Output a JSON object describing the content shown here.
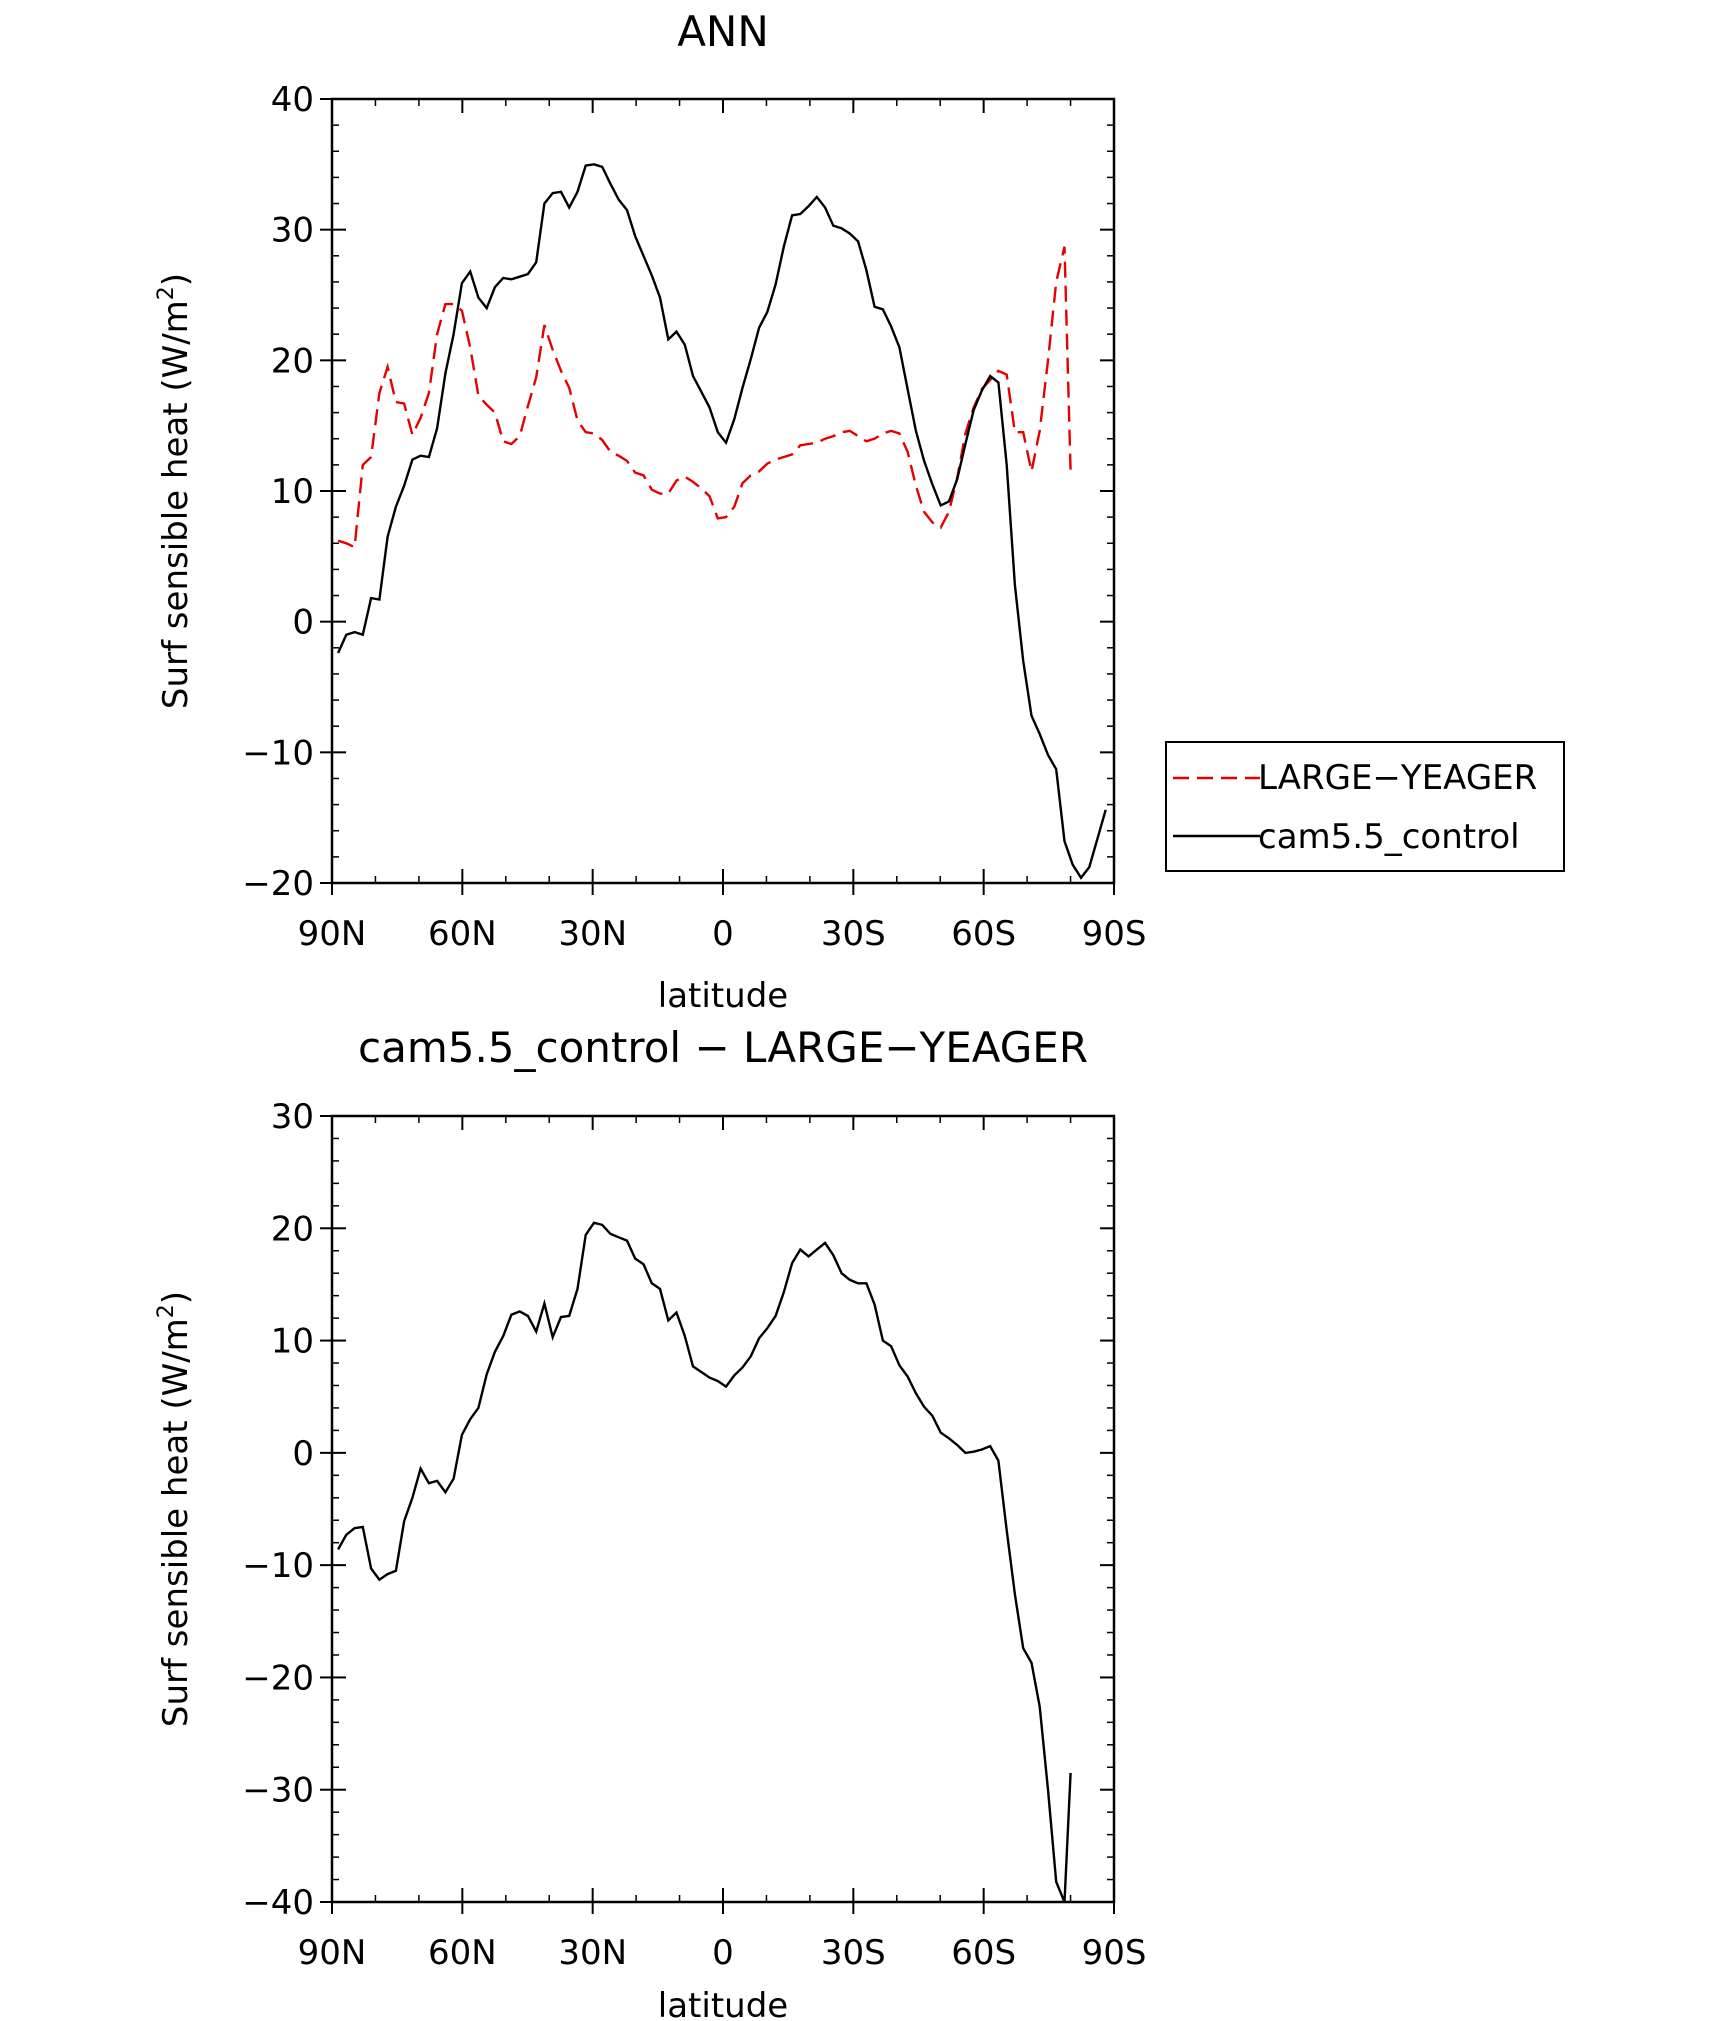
{
  "chart_data": [
    {
      "type": "line",
      "title": "ANN",
      "xlabel": "latitude",
      "ylabel": "Surf sensible heat (W/m²)",
      "ylabel_main": "Surf sensible heat (W/m",
      "ylabel_sup": "2",
      "ylabel_close": ")",
      "xlim": [
        90,
        -90
      ],
      "ylim": [
        -20,
        40
      ],
      "yticks": [
        40,
        30,
        20,
        10,
        0,
        -10,
        -20
      ],
      "ytick_labels": [
        "40",
        "30",
        "20",
        "10",
        "0",
        "−10",
        "−20"
      ],
      "xticks": [
        90,
        60,
        30,
        0,
        -30,
        -60,
        -90
      ],
      "xtick_labels": [
        "90N",
        "60N",
        "30N",
        "0",
        "30S",
        "60S",
        "90S"
      ],
      "legend": [
        "LARGE−YEAGER",
        "cam5.5_control"
      ],
      "legend_position": "right",
      "series": [
        {
          "name": "LARGE−YEAGER",
          "color": "#e60000",
          "dash": true,
          "lat": [
            88.6,
            86.7,
            84.8,
            82.9,
            81.0,
            79.1,
            77.2,
            75.3,
            73.4,
            71.5,
            69.6,
            67.7,
            65.8,
            63.9,
            62.0,
            60.1,
            58.2,
            56.3,
            54.4,
            52.5,
            50.6,
            48.7,
            46.8,
            44.9,
            43.0,
            41.1,
            39.2,
            37.3,
            35.4,
            33.5,
            31.6,
            29.7,
            27.8,
            25.9,
            24.0,
            22.1,
            20.2,
            18.3,
            16.4,
            14.5,
            12.6,
            10.7,
            8.8,
            6.9,
            5.0,
            3.1,
            1.2,
            -0.7,
            -2.6,
            -4.5,
            -6.4,
            -8.3,
            -10.2,
            -12.1,
            -14.0,
            -15.9,
            -17.8,
            -19.7,
            -21.6,
            -23.5,
            -25.4,
            -27.3,
            -29.2,
            -31.1,
            -33.0,
            -34.9,
            -36.8,
            -38.7,
            -40.6,
            -42.5,
            -44.4,
            -46.3,
            -48.2,
            -50.1,
            -52.0,
            -53.9,
            -55.8,
            -57.7,
            -59.6,
            -61.5,
            -63.4,
            -65.3,
            -67.2,
            -69.1,
            -71.0,
            -72.9,
            -74.8,
            -76.7,
            -78.6,
            -80.0
          ],
          "values": [
            6.2,
            6.0,
            5.7,
            12.0,
            12.6,
            17.5,
            19.5,
            16.8,
            16.7,
            14.3,
            15.6,
            17.5,
            22.0,
            24.3,
            24.3,
            23.8,
            21.0,
            17.3,
            16.6,
            16.0,
            13.8,
            13.6,
            14.2,
            16.5,
            18.7,
            22.7,
            20.8,
            19.2,
            17.9,
            15.4,
            14.5,
            14.4,
            13.9,
            13.0,
            12.7,
            12.3,
            11.4,
            11.2,
            10.1,
            9.8,
            9.8,
            10.8,
            11.1,
            10.7,
            10.2,
            9.6,
            7.9,
            8.0,
            8.8,
            10.6,
            11.2,
            11.5,
            12.1,
            12.4,
            12.6,
            12.8,
            13.5,
            13.6,
            13.7,
            14.0,
            14.2,
            14.5,
            14.6,
            14.2,
            13.8,
            14.0,
            14.4,
            14.6,
            14.4,
            13.0,
            10.4,
            8.4,
            7.6,
            7.2,
            8.4,
            11.0,
            14.4,
            16.4,
            17.8,
            18.5,
            19.2,
            18.9,
            14.5,
            14.5,
            11.5,
            14.6,
            20.0,
            26.0,
            28.7,
            11.5
          ]
        },
        {
          "name": "cam5.5_control",
          "color": "#000000",
          "dash": false,
          "lat": [
            88.6,
            86.7,
            84.8,
            82.9,
            81.0,
            79.1,
            77.2,
            75.3,
            73.4,
            71.5,
            69.6,
            67.7,
            65.8,
            63.9,
            62.0,
            60.1,
            58.2,
            56.3,
            54.4,
            52.5,
            50.6,
            48.7,
            46.8,
            44.9,
            43.0,
            41.1,
            39.2,
            37.3,
            35.4,
            33.5,
            31.6,
            29.7,
            27.8,
            25.9,
            24.0,
            22.1,
            20.2,
            18.3,
            16.4,
            14.5,
            12.6,
            10.7,
            8.8,
            6.9,
            5.0,
            3.1,
            1.2,
            -0.7,
            -2.6,
            -4.5,
            -6.4,
            -8.3,
            -10.2,
            -12.1,
            -14.0,
            -15.9,
            -17.8,
            -19.7,
            -21.6,
            -23.5,
            -25.4,
            -27.3,
            -29.2,
            -31.1,
            -33.0,
            -34.9,
            -36.8,
            -38.7,
            -40.6,
            -42.5,
            -44.4,
            -46.3,
            -48.2,
            -50.1,
            -52.0,
            -53.9,
            -55.8,
            -57.7,
            -59.6,
            -61.5,
            -63.4,
            -65.3,
            -67.2,
            -69.1,
            -71.0,
            -72.9,
            -74.8,
            -76.7,
            -78.6,
            -80.5,
            -82.4,
            -84.3,
            -86.2,
            -88.1
          ],
          "values": [
            -2.4,
            -1.0,
            -0.8,
            -1.0,
            1.8,
            1.7,
            6.5,
            8.8,
            10.4,
            12.4,
            12.7,
            12.6,
            14.8,
            19.0,
            22.0,
            25.9,
            26.8,
            24.8,
            24.0,
            25.6,
            26.3,
            26.2,
            26.4,
            26.6,
            27.5,
            32.0,
            32.8,
            32.9,
            31.7,
            32.9,
            34.9,
            35.0,
            34.8,
            33.5,
            32.3,
            31.5,
            29.5,
            28.0,
            26.5,
            24.8,
            21.6,
            22.2,
            21.2,
            18.8,
            17.6,
            16.4,
            14.5,
            13.7,
            15.5,
            17.9,
            20.1,
            22.5,
            23.7,
            25.8,
            28.7,
            31.1,
            31.2,
            31.8,
            32.5,
            31.7,
            30.3,
            30.1,
            29.7,
            29.1,
            26.9,
            24.1,
            23.9,
            22.6,
            21.0,
            17.8,
            14.6,
            12.3,
            10.5,
            8.9,
            9.2,
            10.9,
            13.6,
            16.2,
            17.7,
            18.8,
            18.3,
            12.0,
            2.8,
            -3.0,
            -7.2,
            -8.6,
            -10.2,
            -11.3,
            -16.8,
            -18.6,
            -19.6,
            -18.8,
            -16.6,
            -14.4
          ]
        }
      ]
    },
    {
      "type": "line",
      "title": "cam5.5_control − LARGE−YEAGER",
      "xlabel": "latitude",
      "ylabel": "Surf sensible heat (W/m²)",
      "ylabel_main": "Surf sensible heat (W/m",
      "ylabel_sup": "2",
      "ylabel_close": ")",
      "xlim": [
        90,
        -90
      ],
      "ylim": [
        -40,
        30
      ],
      "yticks": [
        30,
        20,
        10,
        0,
        -10,
        -20,
        -30,
        -40
      ],
      "ytick_labels": [
        "30",
        "20",
        "10",
        "0",
        "−10",
        "−20",
        "−30",
        "−40"
      ],
      "xticks": [
        90,
        60,
        30,
        0,
        -30,
        -60,
        -90
      ],
      "xtick_labels": [
        "90N",
        "60N",
        "30N",
        "0",
        "30S",
        "60S",
        "90S"
      ],
      "series": [
        {
          "name": "cam5.5_control − LARGE−YEAGER",
          "color": "#000000",
          "dash": false,
          "lat": [
            88.6,
            86.7,
            84.8,
            82.9,
            81.0,
            79.1,
            77.2,
            75.3,
            73.4,
            71.5,
            69.6,
            67.7,
            65.8,
            63.9,
            62.0,
            60.1,
            58.2,
            56.3,
            54.4,
            52.5,
            50.6,
            48.7,
            46.8,
            44.9,
            43.0,
            41.1,
            39.2,
            37.3,
            35.4,
            33.5,
            31.6,
            29.7,
            27.8,
            25.9,
            24.0,
            22.1,
            20.2,
            18.3,
            16.4,
            14.5,
            12.6,
            10.7,
            8.8,
            6.9,
            5.0,
            3.1,
            1.2,
            -0.7,
            -2.6,
            -4.5,
            -6.4,
            -8.3,
            -10.2,
            -12.1,
            -14.0,
            -15.9,
            -17.8,
            -19.7,
            -21.6,
            -23.5,
            -25.4,
            -27.3,
            -29.2,
            -31.1,
            -33.0,
            -34.9,
            -36.8,
            -38.7,
            -40.6,
            -42.5,
            -44.4,
            -46.3,
            -48.2,
            -50.1,
            -52.0,
            -53.9,
            -55.8,
            -57.7,
            -59.6,
            -61.5,
            -63.4,
            -65.3,
            -67.2,
            -69.1,
            -71.0,
            -72.9,
            -74.8,
            -76.7,
            -78.6,
            -80.0
          ],
          "values": [
            -8.6,
            -7.3,
            -6.7,
            -6.6,
            -10.3,
            -11.3,
            -10.8,
            -10.5,
            -6.1,
            -4.0,
            -1.4,
            -2.7,
            -2.5,
            -3.5,
            -2.3,
            1.6,
            3.0,
            4.0,
            7.0,
            9.0,
            10.4,
            12.3,
            12.6,
            12.2,
            10.8,
            13.3,
            10.3,
            12.1,
            12.2,
            14.6,
            19.4,
            20.5,
            20.3,
            19.5,
            19.2,
            18.9,
            17.3,
            16.8,
            15.1,
            14.6,
            11.8,
            12.5,
            10.4,
            7.7,
            7.2,
            6.7,
            6.4,
            5.9,
            6.9,
            7.6,
            8.6,
            10.2,
            11.1,
            12.2,
            14.3,
            16.9,
            18.1,
            17.5,
            18.1,
            18.7,
            17.6,
            16.0,
            15.4,
            15.1,
            15.1,
            13.2,
            10.0,
            9.5,
            7.8,
            6.8,
            5.3,
            4.1,
            3.3,
            1.8,
            1.3,
            0.7,
            0.0,
            0.1,
            0.3,
            0.6,
            -0.7,
            -6.9,
            -12.6,
            -17.4,
            -18.7,
            -22.6,
            -30.0,
            -38.2,
            -40.0,
            -28.5
          ]
        }
      ]
    }
  ]
}
